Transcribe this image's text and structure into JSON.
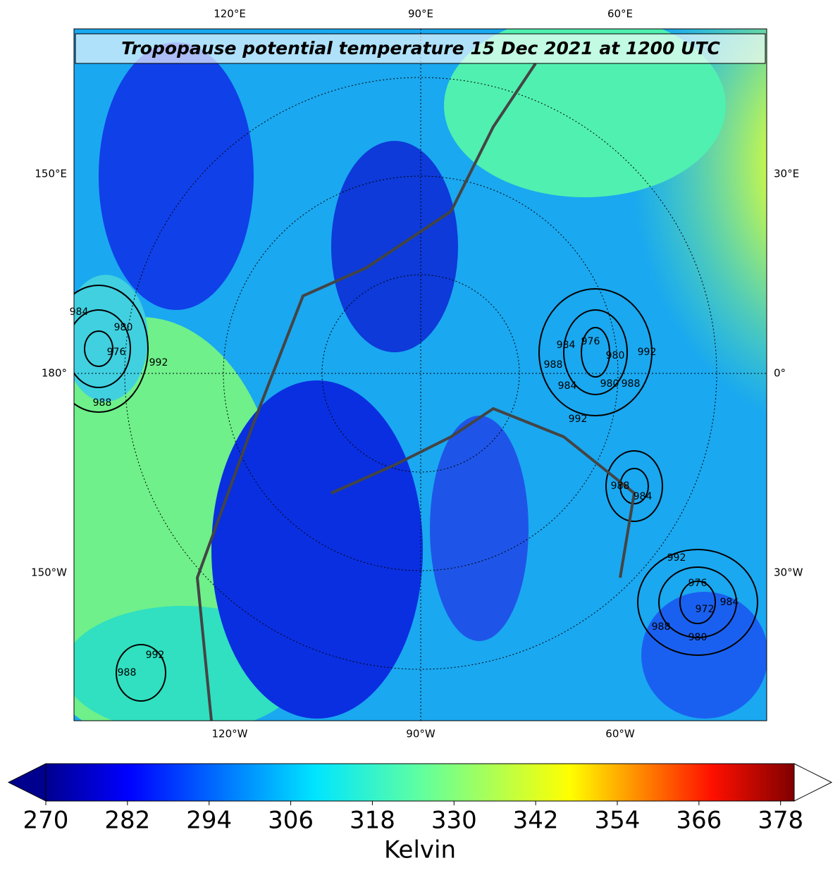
{
  "title": "Tropopause potential temperature 15 Dec 2021 at 1200 UTC",
  "lon_labels": {
    "top": [
      "120°E",
      "90°E",
      "60°E"
    ],
    "bottom": [
      "120°W",
      "90°W",
      "60°W"
    ],
    "left": [
      "150°E",
      "180°",
      "150°W"
    ],
    "right": [
      "30°E",
      "0°",
      "30°W"
    ]
  },
  "contour_labels": [
    984,
    980,
    976,
    992,
    988,
    984,
    976,
    980,
    988,
    984,
    980,
    988,
    992,
    992,
    988,
    984,
    992,
    976,
    972,
    984,
    988,
    980,
    992,
    988
  ],
  "colorbar": {
    "lim": [
      270,
      380
    ],
    "ticks": [
      270,
      282,
      294,
      306,
      318,
      330,
      342,
      354,
      366,
      378
    ],
    "label": "Kelvin"
  }
}
